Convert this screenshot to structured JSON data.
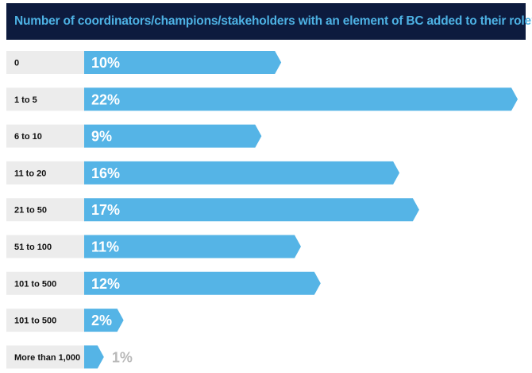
{
  "chart_data": {
    "type": "bar",
    "orientation": "horizontal",
    "title": "Number of coordinators/champions/stakeholders with an element of BC added to their role?",
    "categories": [
      "0",
      "1 to 5",
      "6 to 10",
      "11 to 20",
      "21 to 50",
      "51 to 100",
      "101 to 500",
      "101 to 500",
      "More than 1,000"
    ],
    "values": [
      10,
      22,
      9,
      16,
      17,
      11,
      12,
      2,
      1
    ],
    "value_labels": [
      "10%",
      "22%",
      "9%",
      "16%",
      "17%",
      "11%",
      "12%",
      "2%",
      "1%"
    ],
    "unit": "%",
    "xlim": [
      0,
      22
    ],
    "grid": false,
    "legend": "none",
    "colors": {
      "header_bg": "#0d1b3e",
      "title": "#4db1e3",
      "bar": "#55b4e6",
      "label_bg": "#ececec",
      "value_text_inside": "#ffffff",
      "value_text_outside": "#b9b9b9",
      "category_text": "#111111"
    }
  }
}
